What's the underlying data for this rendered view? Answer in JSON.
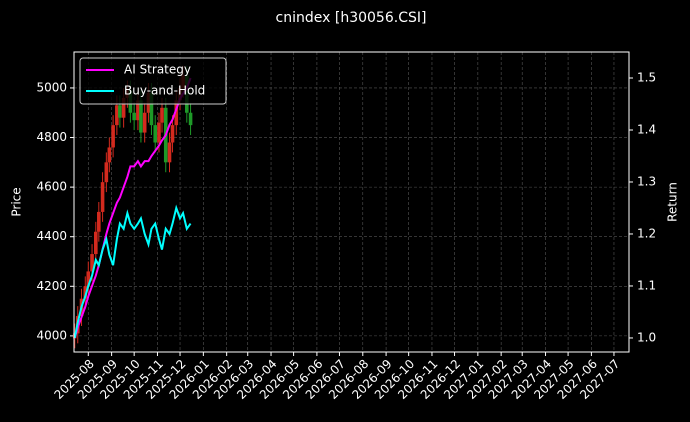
{
  "chart_data": {
    "type": "candlestick_lines",
    "title": "cnindex [h30056.CSI]",
    "ylabel": "Price",
    "y2label": "Return",
    "x": [
      "2025-07-14",
      "2025-07-18",
      "2025-07-23",
      "2025-07-28",
      "2025-08-01",
      "2025-08-06",
      "2025-08-11",
      "2025-08-15",
      "2025-08-20",
      "2025-08-25",
      "2025-08-29",
      "2025-09-03",
      "2025-09-08",
      "2025-09-12",
      "2025-09-17",
      "2025-09-22",
      "2025-09-26",
      "2025-10-01",
      "2025-10-06",
      "2025-10-10",
      "2025-10-15",
      "2025-10-20",
      "2025-10-24",
      "2025-10-29",
      "2025-11-03",
      "2025-11-07",
      "2025-11-12",
      "2025-11-17",
      "2025-11-21",
      "2025-11-26",
      "2025-12-01",
      "2025-12-05",
      "2025-12-10",
      "2025-12-15"
    ],
    "candles": {
      "up_color": "#d42a1e",
      "down_color": "#1e9a28",
      "open": [
        3990,
        4010,
        4080,
        4150,
        4200,
        4260,
        4330,
        4420,
        4500,
        4620,
        4700,
        4760,
        4850,
        4930,
        4880,
        4960,
        4990,
        4900,
        4870,
        4950,
        4820,
        4900,
        4980,
        4850,
        4780,
        4860,
        4920,
        4700,
        4780,
        4850,
        4950,
        5000,
        5050,
        4900
      ],
      "high": [
        4050,
        4120,
        4190,
        4240,
        4300,
        4370,
        4460,
        4540,
        4660,
        4740,
        4800,
        4890,
        4970,
        4970,
        5000,
        5030,
        5030,
        4940,
        4990,
        4990,
        4940,
        5020,
        5020,
        4890,
        4900,
        4960,
        4960,
        4820,
        4890,
        4990,
        5040,
        5090,
        5090,
        4940
      ],
      "low": [
        3950,
        3970,
        4040,
        4110,
        4160,
        4220,
        4290,
        4380,
        4460,
        4580,
        4660,
        4720,
        4810,
        4840,
        4840,
        4920,
        4860,
        4830,
        4830,
        4780,
        4780,
        4860,
        4810,
        4740,
        4740,
        4820,
        4660,
        4660,
        4740,
        4810,
        4910,
        4960,
        4860,
        4810
      ],
      "close": [
        4010,
        4080,
        4150,
        4200,
        4260,
        4330,
        4420,
        4500,
        4620,
        4700,
        4760,
        4850,
        4930,
        4880,
        4960,
        4990,
        4900,
        4870,
        4950,
        4820,
        4900,
        4980,
        4850,
        4780,
        4860,
        4920,
        4700,
        4780,
        4850,
        4950,
        5000,
        5050,
        4900,
        4850
      ]
    },
    "series": [
      {
        "name": "AI Strategy",
        "color": "#ff00ff",
        "axis": "y2",
        "values": [
          1.0,
          1.02,
          1.04,
          1.06,
          1.08,
          1.1,
          1.12,
          1.14,
          1.17,
          1.2,
          1.22,
          1.24,
          1.26,
          1.27,
          1.29,
          1.31,
          1.33,
          1.33,
          1.34,
          1.33,
          1.34,
          1.34,
          1.35,
          1.36,
          1.37,
          1.38,
          1.39,
          1.41,
          1.42,
          1.44,
          1.46,
          1.47,
          1.48,
          1.5
        ]
      },
      {
        "name": "Buy-and-Hold",
        "color": "#00ffff",
        "axis": "y2",
        "values": [
          1.0,
          1.03,
          1.06,
          1.08,
          1.1,
          1.12,
          1.15,
          1.14,
          1.17,
          1.19,
          1.16,
          1.14,
          1.19,
          1.22,
          1.21,
          1.24,
          1.22,
          1.21,
          1.22,
          1.23,
          1.2,
          1.18,
          1.21,
          1.22,
          1.19,
          1.17,
          1.21,
          1.2,
          1.22,
          1.25,
          1.23,
          1.24,
          1.21,
          1.22
        ]
      }
    ],
    "xlim": [
      "2025-07-13",
      "2027-07-21"
    ],
    "xticks": [
      "2025-08",
      "2025-09",
      "2025-10",
      "2025-11",
      "2025-12",
      "2026-01",
      "2026-02",
      "2026-03",
      "2026-04",
      "2026-05",
      "2026-06",
      "2026-07",
      "2026-08",
      "2026-09",
      "2026-10",
      "2026-11",
      "2026-12",
      "2027-01",
      "2027-02",
      "2027-03",
      "2027-04",
      "2027-05",
      "2027-06",
      "2027-07"
    ],
    "ylim": [
      3935,
      5145
    ],
    "yticks": [
      4000,
      4200,
      4400,
      4600,
      4800,
      5000
    ],
    "y2lim": [
      0.973,
      1.55
    ],
    "y2ticks": [
      {
        "value": 1.0,
        "label": "1.0"
      },
      1.1,
      1.2,
      1.3,
      1.4,
      1.5
    ],
    "grid": true,
    "legend": "upper left"
  }
}
